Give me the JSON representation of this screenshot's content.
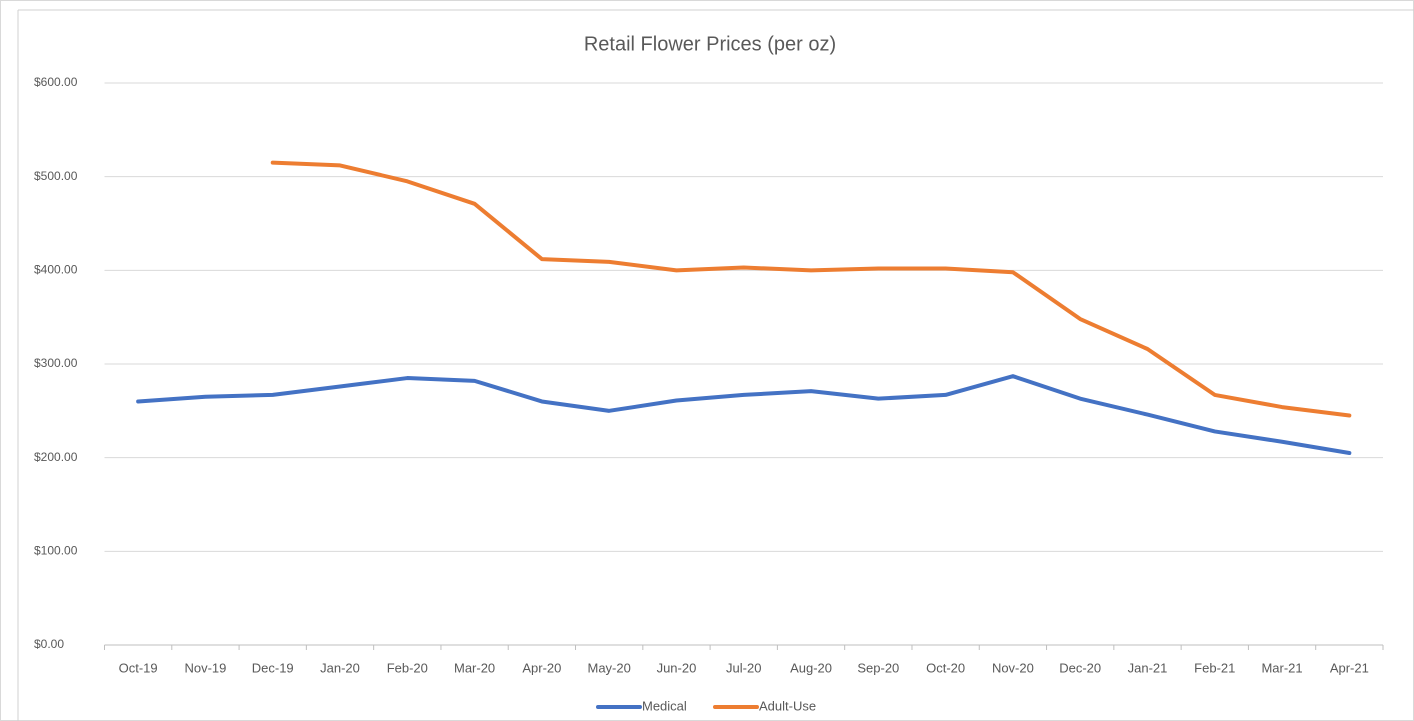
{
  "chart_data": {
    "type": "line",
    "title": "Retail Flower Prices (per oz)",
    "categories": [
      "Oct-19",
      "Nov-19",
      "Dec-19",
      "Jan-20",
      "Feb-20",
      "Mar-20",
      "Apr-20",
      "May-20",
      "Jun-20",
      "Jul-20",
      "Aug-20",
      "Sep-20",
      "Oct-20",
      "Nov-20",
      "Dec-20",
      "Jan-21",
      "Feb-21",
      "Mar-21",
      "Apr-21"
    ],
    "series": [
      {
        "name": "Medical",
        "color": "#4472c4",
        "values": [
          260,
          265,
          267,
          276,
          285,
          282,
          260,
          250,
          261,
          267,
          271,
          263,
          267,
          287,
          263,
          246,
          228,
          217,
          205
        ]
      },
      {
        "name": "Adult-Use",
        "color": "#ed7d31",
        "values": [
          null,
          null,
          515,
          512,
          495,
          471,
          412,
          409,
          400,
          403,
          400,
          402,
          402,
          398,
          348,
          316,
          267,
          254,
          245
        ]
      }
    ],
    "ylim": [
      0,
      600
    ],
    "yticks": [
      {
        "value": 0,
        "label": "$0.00"
      },
      {
        "value": 100,
        "label": "$100.00"
      },
      {
        "value": 200,
        "label": "$200.00"
      },
      {
        "value": 300,
        "label": "$300.00"
      },
      {
        "value": 400,
        "label": "$400.00"
      },
      {
        "value": 500,
        "label": "$500.00"
      },
      {
        "value": 600,
        "label": "$600.00"
      }
    ],
    "grid": true,
    "legend": "bottom"
  }
}
